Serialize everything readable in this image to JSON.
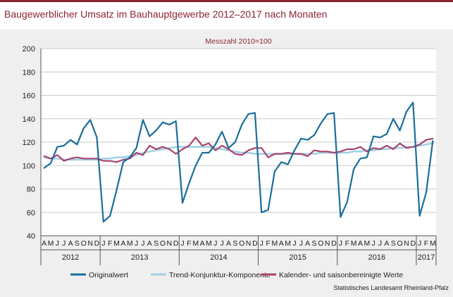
{
  "title": "Baugewerblicher Umsatz im Bauhauptgewerbe 2012–2017 nach Monaten",
  "source": "Statistisches Landesamt Rheinland-Pfalz",
  "colors": {
    "accent": "#8a2333",
    "original": "#1a6e99",
    "trend": "#9fd0e3",
    "seasonal": "#a8436e",
    "panel": "#efefef"
  },
  "chart_data": {
    "type": "line",
    "subtitle": "Messzahl 2010=100",
    "ylim": [
      40,
      200
    ],
    "yticks": [
      40,
      60,
      80,
      100,
      120,
      140,
      160,
      180,
      200
    ],
    "grid": true,
    "legend_position": "bottom",
    "month_labels": [
      "A",
      "M",
      "J",
      "J",
      "A",
      "S",
      "O",
      "N",
      "D",
      "J",
      "F",
      "M",
      "A",
      "M",
      "J",
      "J",
      "A",
      "S",
      "O",
      "N",
      "D",
      "J",
      "F",
      "M",
      "A",
      "M",
      "J",
      "J",
      "A",
      "S",
      "O",
      "N",
      "D",
      "J",
      "F",
      "M",
      "A",
      "M",
      "J",
      "J",
      "A",
      "S",
      "O",
      "N",
      "D",
      "J",
      "F",
      "M",
      "A",
      "M",
      "J",
      "J",
      "A",
      "S",
      "O",
      "N",
      "D",
      "J",
      "F",
      "M"
    ],
    "years": [
      {
        "label": "2012",
        "start": 0,
        "count": 9
      },
      {
        "label": "2013",
        "start": 9,
        "count": 12
      },
      {
        "label": "2014",
        "start": 21,
        "count": 12
      },
      {
        "label": "2015",
        "start": 33,
        "count": 12
      },
      {
        "label": "2016",
        "start": 45,
        "count": 12
      },
      {
        "label": "2017",
        "start": 57,
        "count": 3
      }
    ],
    "series": [
      {
        "name": "Originalwert",
        "color": "#1a6e99",
        "values": [
          98,
          102,
          116,
          117,
          122,
          118,
          132,
          139,
          124,
          52,
          57,
          79,
          103,
          107,
          115,
          139,
          125,
          130,
          137,
          135,
          138,
          68,
          85,
          100,
          111,
          111,
          118,
          129,
          115,
          120,
          135,
          144,
          145,
          60,
          62,
          95,
          103,
          101,
          113,
          123,
          122,
          126,
          136,
          144,
          145,
          56,
          69,
          97,
          106,
          107,
          125,
          124,
          127,
          140,
          130,
          146,
          154,
          57,
          77,
          121
        ]
      },
      {
        "name": "Trend-Konjunktur-Komponente",
        "color": "#9fd0e3",
        "values": [
          107,
          106,
          106,
          105,
          105,
          105,
          105,
          105,
          105,
          106,
          106,
          107,
          107,
          108,
          109,
          111,
          112,
          113,
          114,
          115,
          116,
          116,
          116,
          116,
          116,
          116,
          115,
          114,
          113,
          112,
          111,
          111,
          110,
          110,
          110,
          110,
          110,
          110,
          110,
          110,
          110,
          110,
          111,
          111,
          111,
          111,
          111,
          112,
          112,
          113,
          113,
          114,
          114,
          115,
          115,
          116,
          116,
          117,
          118,
          119
        ]
      },
      {
        "name": "Kalender- und saisonbereinigte Werte",
        "color": "#a8436e",
        "values": [
          108,
          106,
          109,
          104,
          106,
          107,
          106,
          106,
          106,
          104,
          104,
          103,
          105,
          106,
          111,
          109,
          117,
          114,
          116,
          114,
          110,
          114,
          117,
          124,
          117,
          119,
          113,
          117,
          114,
          110,
          109,
          113,
          115,
          115,
          107,
          110,
          110,
          111,
          110,
          110,
          108,
          113,
          112,
          112,
          111,
          112,
          114,
          114,
          116,
          112,
          115,
          114,
          117,
          114,
          119,
          115,
          116,
          118,
          122,
          123
        ]
      }
    ]
  }
}
